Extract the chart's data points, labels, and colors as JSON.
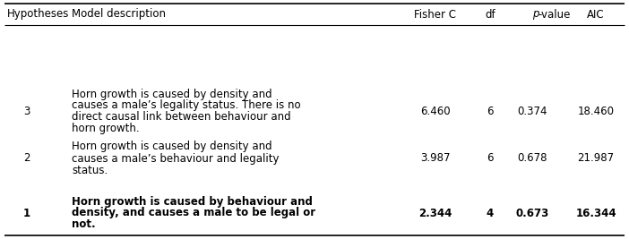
{
  "headers": [
    "Hypotheses",
    "Model description",
    "Fisher C",
    "df",
    "p-value",
    "AIC"
  ],
  "rows": [
    {
      "hypothesis": "1",
      "description": [
        "Horn growth is caused by behaviour and",
        "density, and causes a male to be legal or",
        "not."
      ],
      "fisher_c": "2.344",
      "df": "4",
      "p_value": "0.673",
      "aic": "16.344",
      "bold": true
    },
    {
      "hypothesis": "2",
      "description": [
        "Horn growth is caused by density and",
        "causes a male’s behaviour and legality",
        "status."
      ],
      "fisher_c": "3.987",
      "df": "6",
      "p_value": "0.678",
      "aic": "21.987",
      "bold": false
    },
    {
      "hypothesis": "3",
      "description": [
        "Horn growth is caused by density and",
        "causes a male’s legality status. There is no",
        "direct causal link between behaviour and",
        "horn growth."
      ],
      "fisher_c": "6.460",
      "df": "6",
      "p_value": "0.374",
      "aic": "18.460",
      "bold": false
    }
  ],
  "bg_color": "#ffffff",
  "text_color": "#000000",
  "header_fontsize": 8.5,
  "body_fontsize": 8.5,
  "figwidth": 7.02,
  "figheight": 2.67,
  "dpi": 100
}
